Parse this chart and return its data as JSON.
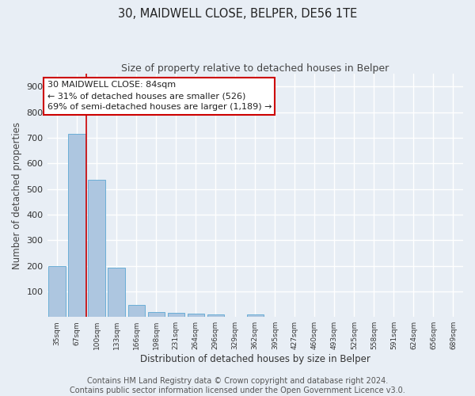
{
  "title1": "30, MAIDWELL CLOSE, BELPER, DE56 1TE",
  "title2": "Size of property relative to detached houses in Belper",
  "xlabel": "Distribution of detached houses by size in Belper",
  "ylabel": "Number of detached properties",
  "categories": [
    "35sqm",
    "67sqm",
    "100sqm",
    "133sqm",
    "166sqm",
    "198sqm",
    "231sqm",
    "264sqm",
    "296sqm",
    "329sqm",
    "362sqm",
    "395sqm",
    "427sqm",
    "460sqm",
    "493sqm",
    "525sqm",
    "558sqm",
    "591sqm",
    "624sqm",
    "656sqm",
    "689sqm"
  ],
  "values": [
    200,
    715,
    537,
    192,
    47,
    20,
    15,
    12,
    10,
    0,
    10,
    0,
    0,
    0,
    0,
    0,
    0,
    0,
    0,
    0,
    0
  ],
  "bar_color": "#adc6e0",
  "bar_edge_color": "#6baed6",
  "bg_color": "#e8eef5",
  "grid_color": "#ffffff",
  "annotation_text": "30 MAIDWELL CLOSE: 84sqm\n← 31% of detached houses are smaller (526)\n69% of semi-detached houses are larger (1,189) →",
  "annotation_box_color": "#ffffff",
  "annotation_border_color": "#cc0000",
  "red_line_x": 1.48,
  "ylim": [
    0,
    950
  ],
  "yticks": [
    100,
    200,
    300,
    400,
    500,
    600,
    700,
    800,
    900
  ],
  "footer_text": "Contains HM Land Registry data © Crown copyright and database right 2024.\nContains public sector information licensed under the Open Government Licence v3.0.",
  "title1_fontsize": 10.5,
  "title2_fontsize": 9,
  "annotation_fontsize": 8,
  "footer_fontsize": 7
}
